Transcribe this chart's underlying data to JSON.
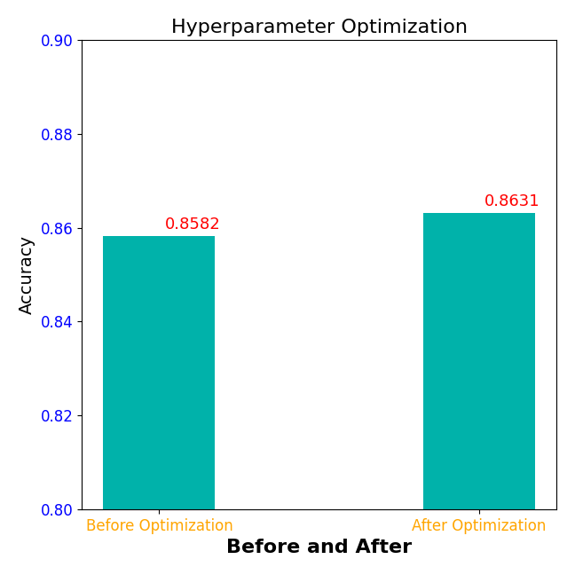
{
  "categories": [
    "Before Optimization",
    "After Optimization"
  ],
  "values": [
    0.8582,
    0.8631
  ],
  "bar_color": "#00B2AA",
  "title": "Hyperparameter Optimization",
  "xlabel": "Before and After",
  "ylabel": "Accuracy",
  "ylim": [
    0.8,
    0.9
  ],
  "yticks": [
    0.8,
    0.82,
    0.84,
    0.86,
    0.88,
    0.9
  ],
  "title_fontsize": 16,
  "xlabel_fontsize": 16,
  "ylabel_fontsize": 14,
  "tick_label_color": "blue",
  "xtick_label_color": "orange",
  "annotation_color": "red",
  "annotation_fontsize": 13,
  "bar_width": 0.35
}
